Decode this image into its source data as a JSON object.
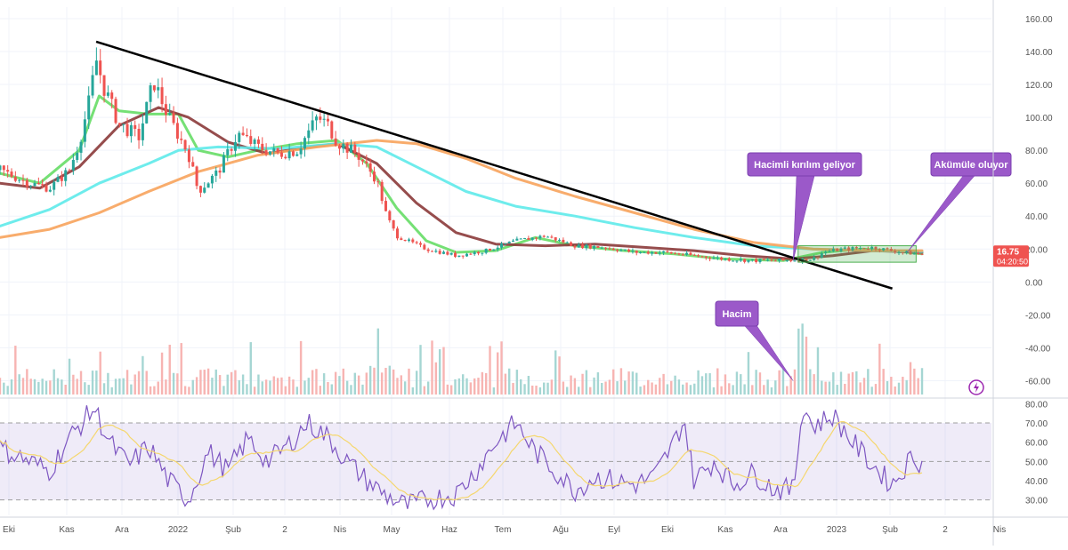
{
  "chart_data": [
    {
      "type": "candlestick",
      "panel": "price",
      "price_badge": {
        "value": "16.75",
        "countdown": "04:20:50",
        "color": "#ef5350"
      },
      "y_axis": {
        "ylim": [
          -70,
          167
        ],
        "ticks": [
          "160.00",
          "140.00",
          "120.00",
          "100.00",
          "80.00",
          "60.00",
          "40.00",
          "20.00",
          "0.00",
          "-20.00",
          "-40.00",
          "-60.00"
        ]
      },
      "x_axis": {
        "ticks": [
          "Eki",
          "Kas",
          "Ara",
          "2022",
          "Şub",
          "2",
          "Nis",
          "May",
          "Haz",
          "Tem",
          "Ağu",
          "Eyl",
          "Eki",
          "Kas",
          "Ara",
          "2023",
          "Şub",
          "2",
          "Nis"
        ]
      },
      "price_path": [
        [
          0,
          68
        ],
        [
          0.03,
          60
        ],
        [
          0.05,
          57
        ],
        [
          0.07,
          68
        ],
        [
          0.08,
          85
        ],
        [
          0.09,
          110
        ],
        [
          0.097,
          135
        ],
        [
          0.105,
          118
        ],
        [
          0.12,
          96
        ],
        [
          0.14,
          88
        ],
        [
          0.155,
          122
        ],
        [
          0.17,
          100
        ],
        [
          0.19,
          78
        ],
        [
          0.2,
          55
        ],
        [
          0.22,
          67
        ],
        [
          0.24,
          90
        ],
        [
          0.26,
          82
        ],
        [
          0.28,
          78
        ],
        [
          0.3,
          80
        ],
        [
          0.32,
          100
        ],
        [
          0.33,
          96
        ],
        [
          0.34,
          85
        ],
        [
          0.36,
          78
        ],
        [
          0.38,
          62
        ],
        [
          0.39,
          40
        ],
        [
          0.4,
          28
        ],
        [
          0.43,
          20
        ],
        [
          0.46,
          16
        ],
        [
          0.49,
          19
        ],
        [
          0.52,
          25
        ],
        [
          0.55,
          28
        ],
        [
          0.58,
          22
        ],
        [
          0.61,
          21
        ],
        [
          0.64,
          18
        ],
        [
          0.67,
          18
        ],
        [
          0.7,
          16
        ],
        [
          0.73,
          14
        ],
        [
          0.76,
          13
        ],
        [
          0.79,
          13
        ],
        [
          0.82,
          14
        ],
        [
          0.83,
          18
        ],
        [
          0.85,
          20
        ],
        [
          0.88,
          21
        ],
        [
          0.91,
          18
        ],
        [
          0.93,
          16.75
        ]
      ],
      "moving_averages": [
        {
          "color": "#66dd66",
          "points": [
            [
              0,
              66
            ],
            [
              0.04,
              60
            ],
            [
              0.08,
              80
            ],
            [
              0.1,
              113
            ],
            [
              0.12,
              104
            ],
            [
              0.15,
              102
            ],
            [
              0.18,
              102
            ],
            [
              0.2,
              80
            ],
            [
              0.23,
              76
            ],
            [
              0.26,
              80
            ],
            [
              0.3,
              84
            ],
            [
              0.34,
              86
            ],
            [
              0.37,
              72
            ],
            [
              0.4,
              45
            ],
            [
              0.43,
              25
            ],
            [
              0.46,
              18
            ],
            [
              0.5,
              19
            ],
            [
              0.54,
              27
            ],
            [
              0.58,
              22
            ],
            [
              0.63,
              19
            ],
            [
              0.68,
              17
            ],
            [
              0.73,
              14
            ],
            [
              0.79,
              13
            ],
            [
              0.83,
              18
            ],
            [
              0.87,
              20
            ],
            [
              0.9,
              19
            ],
            [
              0.93,
              17
            ]
          ]
        },
        {
          "color": "#8b3a3a",
          "points": [
            [
              0,
              60
            ],
            [
              0.04,
              57
            ],
            [
              0.08,
              70
            ],
            [
              0.12,
              95
            ],
            [
              0.16,
              106
            ],
            [
              0.19,
              100
            ],
            [
              0.23,
              85
            ],
            [
              0.27,
              78
            ],
            [
              0.31,
              82
            ],
            [
              0.34,
              84
            ],
            [
              0.38,
              72
            ],
            [
              0.42,
              48
            ],
            [
              0.46,
              30
            ],
            [
              0.5,
              23
            ],
            [
              0.55,
              22
            ],
            [
              0.6,
              23
            ],
            [
              0.65,
              21
            ],
            [
              0.7,
              19
            ],
            [
              0.75,
              16
            ],
            [
              0.8,
              14
            ],
            [
              0.84,
              16
            ],
            [
              0.88,
              19
            ],
            [
              0.93,
              18
            ]
          ]
        },
        {
          "color": "#5eeaea",
          "points": [
            [
              0,
              34
            ],
            [
              0.05,
              44
            ],
            [
              0.1,
              60
            ],
            [
              0.15,
              72
            ],
            [
              0.18,
              80
            ],
            [
              0.22,
              82
            ],
            [
              0.28,
              81
            ],
            [
              0.34,
              84
            ],
            [
              0.38,
              82
            ],
            [
              0.42,
              70
            ],
            [
              0.47,
              55
            ],
            [
              0.52,
              46
            ],
            [
              0.58,
              40
            ],
            [
              0.64,
              33
            ],
            [
              0.7,
              27
            ],
            [
              0.76,
              22
            ],
            [
              0.82,
              20
            ],
            [
              0.88,
              19
            ],
            [
              0.93,
              18.5
            ]
          ]
        },
        {
          "color": "#f7a35c",
          "points": [
            [
              0,
              27
            ],
            [
              0.05,
              32
            ],
            [
              0.1,
              42
            ],
            [
              0.15,
              55
            ],
            [
              0.2,
              67
            ],
            [
              0.26,
              77
            ],
            [
              0.32,
              82
            ],
            [
              0.38,
              86
            ],
            [
              0.42,
              84
            ],
            [
              0.47,
              75
            ],
            [
              0.52,
              63
            ],
            [
              0.58,
              52
            ],
            [
              0.64,
              42
            ],
            [
              0.7,
              32
            ],
            [
              0.76,
              24
            ],
            [
              0.82,
              20
            ],
            [
              0.88,
              19
            ],
            [
              0.93,
              19
            ]
          ]
        }
      ],
      "trendline": {
        "from": [
          0.097,
          146
        ],
        "to": [
          0.9,
          -4
        ]
      },
      "annotations": [
        {
          "text": "Hacimli kırılım geliyor",
          "target": [
            0.8,
            13
          ]
        },
        {
          "text": "Akümüle oluyor",
          "target": [
            0.915,
            18
          ]
        },
        {
          "text": "Hacim",
          "target": [
            0.8,
            -60
          ]
        }
      ],
      "box": {
        "x0": 0.805,
        "x1": 0.924,
        "y0": 12,
        "y1": 22,
        "color": "#4caf50"
      }
    },
    {
      "type": "line",
      "panel": "rsi",
      "ylim": [
        22,
        82
      ],
      "y_ticks": [
        "80.00",
        "70.00",
        "60.00",
        "50.00",
        "40.00",
        "30.00"
      ],
      "band": [
        30,
        70
      ],
      "series": [
        {
          "color": "#7e57c2",
          "role": "rsi"
        },
        {
          "color": "#f5d76e",
          "role": "signal"
        }
      ],
      "rsi_path": [
        [
          0,
          57
        ],
        [
          0.03,
          50
        ],
        [
          0.05,
          45
        ],
        [
          0.07,
          62
        ],
        [
          0.095,
          78
        ],
        [
          0.11,
          60
        ],
        [
          0.13,
          48
        ],
        [
          0.15,
          58
        ],
        [
          0.17,
          40
        ],
        [
          0.19,
          30
        ],
        [
          0.21,
          55
        ],
        [
          0.23,
          45
        ],
        [
          0.25,
          62
        ],
        [
          0.27,
          50
        ],
        [
          0.29,
          58
        ],
        [
          0.31,
          70
        ],
        [
          0.33,
          63
        ],
        [
          0.35,
          50
        ],
        [
          0.37,
          40
        ],
        [
          0.39,
          32
        ],
        [
          0.41,
          27
        ],
        [
          0.43,
          30
        ],
        [
          0.46,
          33
        ],
        [
          0.48,
          45
        ],
        [
          0.5,
          60
        ],
        [
          0.52,
          70
        ],
        [
          0.54,
          55
        ],
        [
          0.56,
          45
        ],
        [
          0.58,
          35
        ],
        [
          0.6,
          42
        ],
        [
          0.62,
          40
        ],
        [
          0.64,
          38
        ],
        [
          0.66,
          42
        ],
        [
          0.68,
          60
        ],
        [
          0.69,
          72
        ],
        [
          0.7,
          40
        ],
        [
          0.72,
          50
        ],
        [
          0.74,
          38
        ],
        [
          0.76,
          44
        ],
        [
          0.78,
          36
        ],
        [
          0.8,
          35
        ],
        [
          0.81,
          80
        ],
        [
          0.82,
          68
        ],
        [
          0.84,
          74
        ],
        [
          0.86,
          60
        ],
        [
          0.88,
          48
        ],
        [
          0.9,
          38
        ],
        [
          0.91,
          45
        ],
        [
          0.92,
          53
        ],
        [
          0.93,
          49
        ]
      ]
    }
  ],
  "toolbar": {
    "alert_icon": "lightning-icon"
  }
}
